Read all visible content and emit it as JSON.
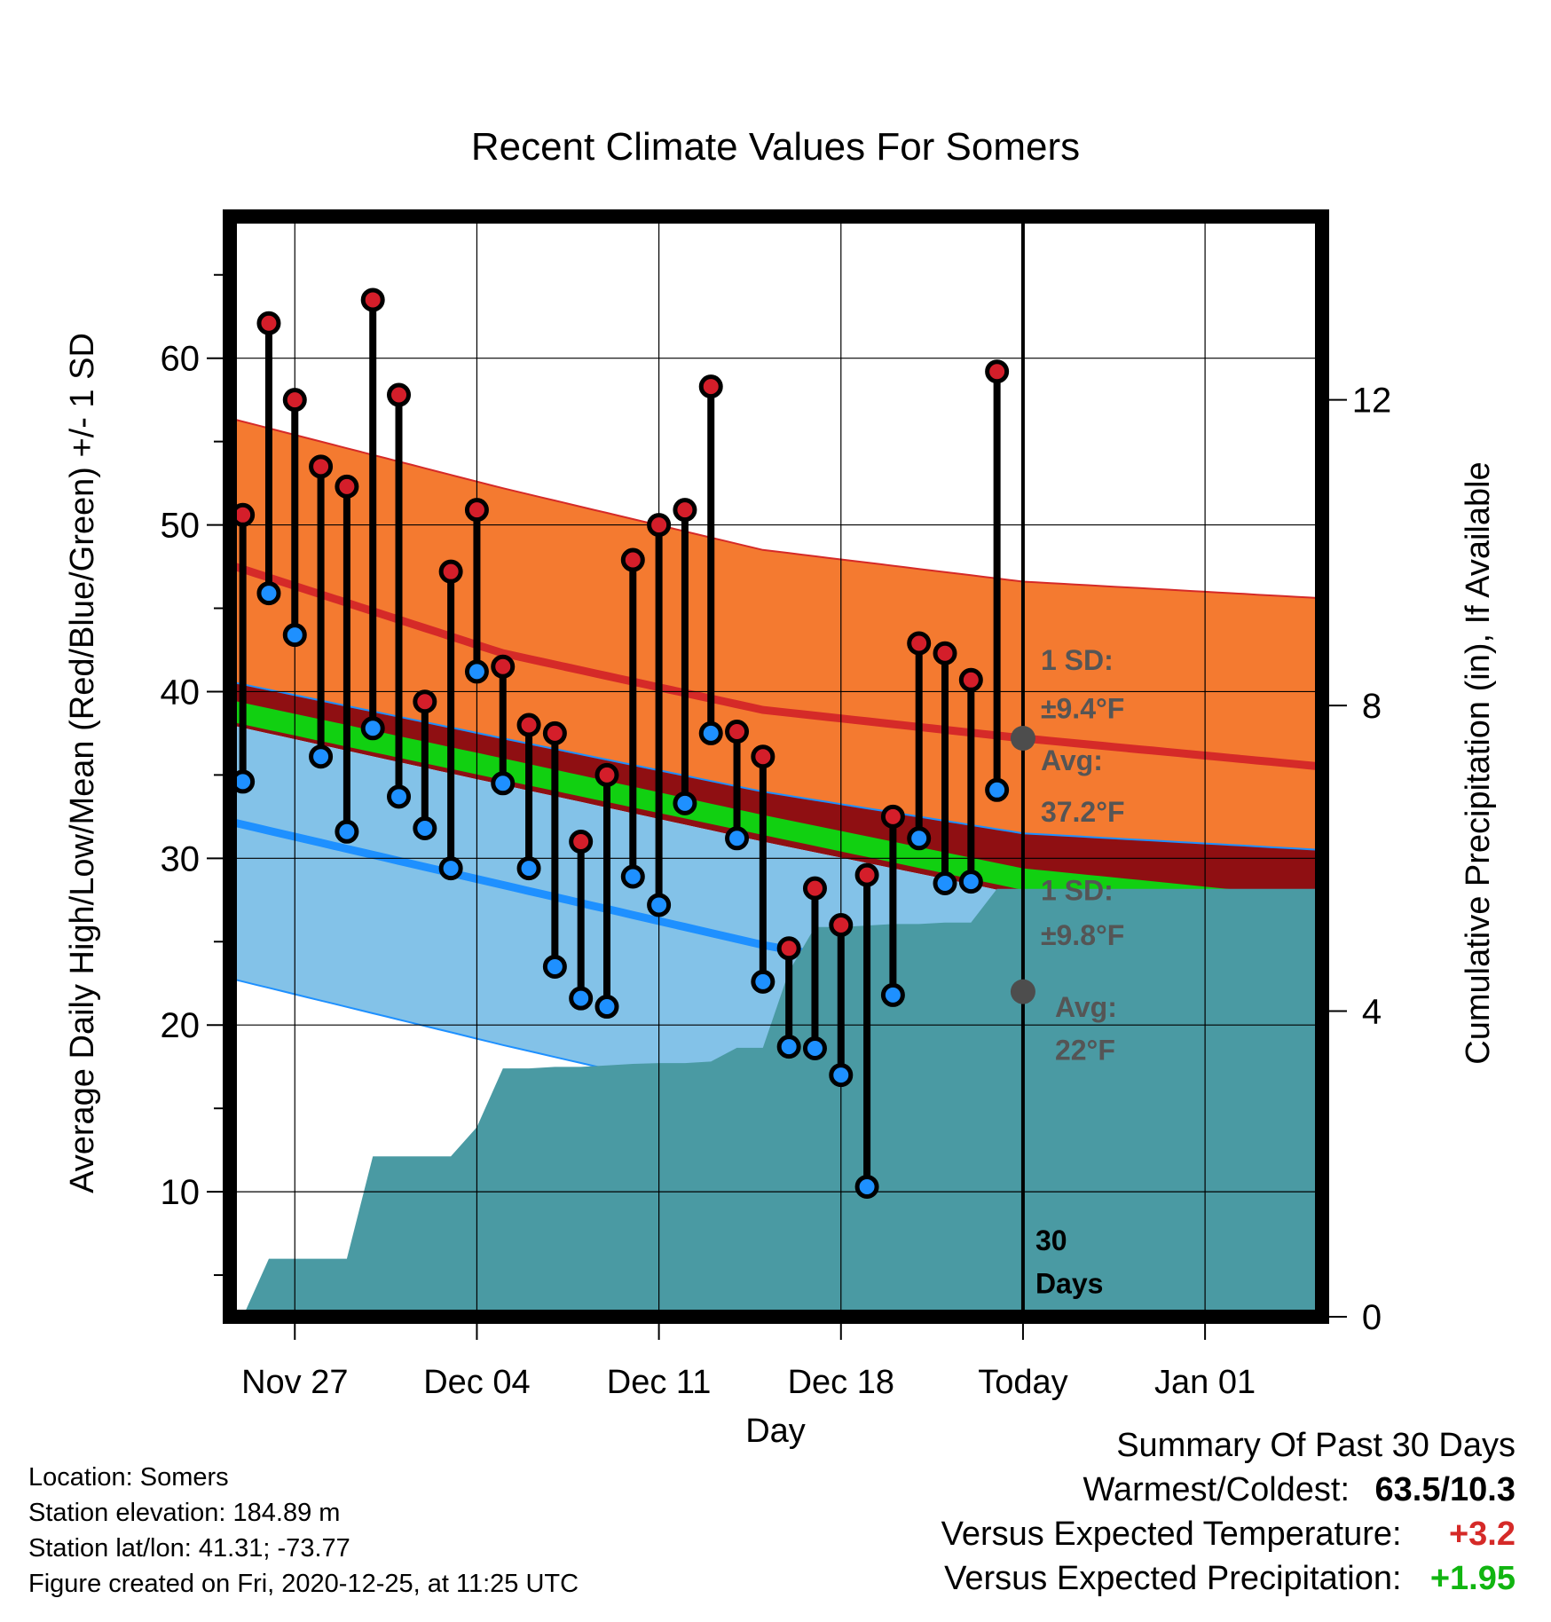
{
  "chart_data": {
    "type": "line",
    "title": "Recent Climate Values For Somers",
    "xlabel": "Day",
    "ylabel_left": "Average Daily High/Low/Mean (Red/Blue/Green) +/- 1 SD",
    "ylabel_right": "Cumulative Precipitation (in), If Available",
    "xlim": [
      -0.5,
      41.5
    ],
    "ylim_left": [
      2.5,
      68.5
    ],
    "ylim_right": [
      0,
      14.4
    ],
    "x_ticks": [
      {
        "x": 2,
        "label": "Nov 27"
      },
      {
        "x": 9,
        "label": "Dec 04"
      },
      {
        "x": 16,
        "label": "Dec 11"
      },
      {
        "x": 23,
        "label": "Dec 18"
      },
      {
        "x": 30,
        "label": "Today"
      },
      {
        "x": 37,
        "label": "Jan 01"
      }
    ],
    "y_ticks_left": [
      10,
      20,
      30,
      40,
      50,
      60
    ],
    "y_ticks_right": [
      0,
      4,
      8,
      12
    ],
    "grid": true,
    "colors": {
      "high_band": "#f47a30",
      "high_line": "#d52a28",
      "mean_band": "#8f0f12",
      "mean_line": "#11d011",
      "low_band": "#83c2e8",
      "low_line": "#1e90ff",
      "precip": "#4a9aa3",
      "observed_high_dot": "#d41e2a",
      "observed_low_dot": "#1e90ff"
    },
    "normals": {
      "x": [
        -0.5,
        10,
        20,
        30,
        41.5
      ],
      "high_mean": [
        47.6,
        42.3,
        38.9,
        37.2,
        35.5
      ],
      "high_sd_upper": [
        56.4,
        52.2,
        48.5,
        46.6,
        45.6
      ],
      "low_mean": [
        32.2,
        28.4,
        24.8,
        22.0,
        20.2
      ],
      "low_sd_lower": [
        22.8,
        18.8,
        15.2,
        12.2,
        10.0
      ],
      "mean_upper": [
        40.6,
        37.2,
        34.0,
        31.5,
        30.5
      ],
      "mean_lower": [
        38.0,
        34.4,
        31.0,
        27.8,
        25.7
      ],
      "mean_line_upper": [
        39.5,
        36.0,
        32.6,
        29.4,
        27.6
      ],
      "mean_line_lower": [
        38.2,
        34.7,
        31.4,
        28.1,
        26.3
      ]
    },
    "observations": {
      "x": [
        0,
        1,
        2,
        3,
        4,
        5,
        6,
        7,
        8,
        9,
        10,
        11,
        12,
        13,
        14,
        15,
        16,
        17,
        18,
        19,
        20,
        21,
        22,
        23,
        24,
        25,
        26,
        27,
        28,
        29
      ],
      "high": [
        50.6,
        62.1,
        57.5,
        53.5,
        52.3,
        63.5,
        57.8,
        39.4,
        47.2,
        50.9,
        41.5,
        38.0,
        37.5,
        31.0,
        35.0,
        47.9,
        50.0,
        50.9,
        58.3,
        37.6,
        36.1,
        24.6,
        28.2,
        26.0,
        29.0,
        32.5,
        42.9,
        42.3,
        40.7,
        59.2
      ],
      "low": [
        34.6,
        45.9,
        43.4,
        36.1,
        31.6,
        37.8,
        33.7,
        31.8,
        29.4,
        41.2,
        34.5,
        29.4,
        23.5,
        21.6,
        21.1,
        28.9,
        27.2,
        33.3,
        37.5,
        31.2,
        22.6,
        18.7,
        18.6,
        17.0,
        10.3,
        21.8,
        31.2,
        28.5,
        28.6,
        34.1
      ]
    },
    "precipitation": {
      "x": [
        0,
        1,
        2,
        3,
        4,
        5,
        6,
        7,
        8,
        9,
        10,
        11,
        12,
        13,
        14,
        15,
        16,
        17,
        18,
        19,
        20,
        21,
        22,
        23,
        24,
        25,
        26,
        27,
        28,
        29,
        30,
        41.5
      ],
      "cumulative": [
        0.0,
        0.76,
        0.76,
        0.76,
        0.76,
        2.1,
        2.1,
        2.1,
        2.1,
        2.48,
        3.25,
        3.25,
        3.27,
        3.27,
        3.29,
        3.31,
        3.32,
        3.32,
        3.34,
        3.52,
        3.52,
        4.52,
        5.1,
        5.1,
        5.12,
        5.14,
        5.14,
        5.16,
        5.16,
        5.6,
        5.6,
        5.6
      ]
    },
    "annotations": {
      "high_sd_title": "1 SD:",
      "high_sd_value": "±9.4°F",
      "high_avg_title": "Avg:",
      "high_avg_value": "37.2°F",
      "high_avg": 37.2,
      "low_sd_title": "1 SD:",
      "low_sd_value": "±9.8°F",
      "low_avg_title": "Avg:",
      "low_avg_value": "22°F",
      "low_avg": 22.0,
      "days_line1": "30",
      "days_line2": "Days",
      "avg_marker_color": "#4d4d4d",
      "annotation_text_color": "#555555"
    }
  },
  "info": {
    "location": "Location: Somers",
    "elevation": "Station elevation: 184.89 m",
    "latlon": "Station lat/lon: 41.31; -73.77",
    "created": "Figure created on Fri, 2020-12-25, at 11:25 UTC"
  },
  "summary": {
    "title": "Summary Of Past 30 Days",
    "warm_label": "Warmest/Coldest:",
    "warm_value": "63.5/10.3",
    "temp_label": "Versus Expected Temperature:",
    "temp_value": "+3.2",
    "temp_color": "#d52a28",
    "precip_label": "Versus Expected Precipitation:",
    "precip_value": "+1.95",
    "precip_color": "#11b511"
  }
}
